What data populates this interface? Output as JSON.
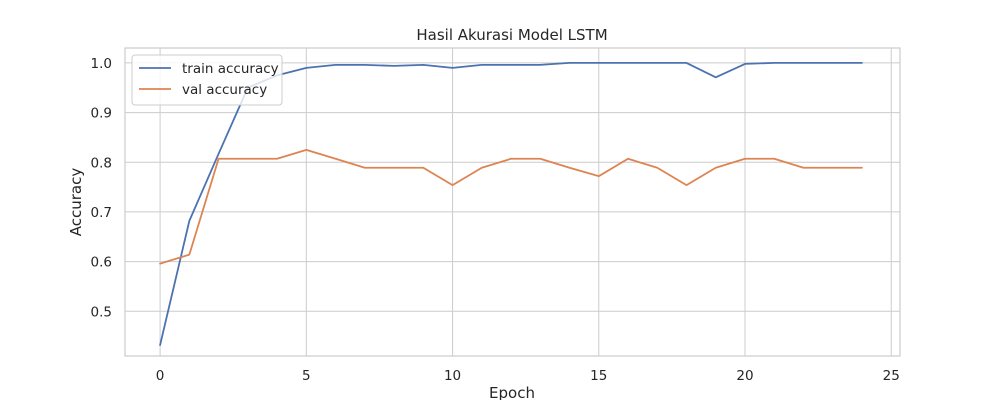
{
  "chart_data": {
    "type": "line",
    "title": "Hasil Akurasi Model LSTM",
    "xlabel": "Epoch",
    "ylabel": "Accuracy",
    "xlim": [
      -1.2,
      25.3
    ],
    "ylim": [
      0.41,
      1.03
    ],
    "xticks": [
      0,
      5,
      10,
      15,
      20,
      25
    ],
    "yticks": [
      0.5,
      0.6,
      0.7,
      0.8,
      0.9,
      1.0
    ],
    "ytick_labels": [
      "0.5",
      "0.6",
      "0.7",
      "0.8",
      "0.9",
      "1.0"
    ],
    "grid": true,
    "legend_position": "upper-left",
    "x": [
      0,
      1,
      2,
      3,
      4,
      5,
      6,
      7,
      8,
      9,
      10,
      11,
      12,
      13,
      14,
      15,
      16,
      17,
      18,
      19,
      20,
      21,
      22,
      23,
      24
    ],
    "series": [
      {
        "name": "train accuracy",
        "color": "#4c72b0",
        "values": [
          0.432,
          0.682,
          0.817,
          0.95,
          0.975,
          0.99,
          0.996,
          0.996,
          0.994,
          0.996,
          0.99,
          0.996,
          0.996,
          0.996,
          1.0,
          1.0,
          1.0,
          1.0,
          1.0,
          0.971,
          0.998,
          1.0,
          1.0,
          1.0,
          1.0
        ]
      },
      {
        "name": "val accuracy",
        "color": "#dd8452",
        "values": [
          0.596,
          0.614,
          0.807,
          0.807,
          0.807,
          0.825,
          0.807,
          0.789,
          0.789,
          0.789,
          0.754,
          0.789,
          0.807,
          0.807,
          0.789,
          0.772,
          0.807,
          0.789,
          0.754,
          0.789,
          0.807,
          0.807,
          0.789,
          0.789,
          0.789
        ]
      }
    ]
  }
}
